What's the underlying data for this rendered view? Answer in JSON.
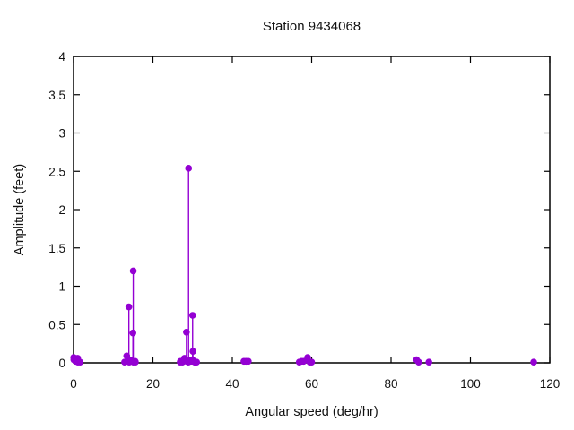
{
  "colors": {
    "marker": "#9400d3",
    "axis": "#000000",
    "background": "#ffffff",
    "text": "#111111"
  },
  "chart_data": {
    "type": "scatter",
    "style": "impulses+points",
    "title": "Station 9434068",
    "xlabel": "Angular speed (deg/hr)",
    "ylabel": "Amplitude (feet)",
    "xlim": [
      0,
      120
    ],
    "ylim": [
      0,
      4
    ],
    "x_ticks": [
      0,
      20,
      40,
      60,
      80,
      100,
      120
    ],
    "y_ticks": [
      0,
      0.5,
      1,
      1.5,
      2,
      2.5,
      3,
      3.5,
      4
    ],
    "grid": false,
    "legend": "none",
    "tick_style": "inward-mirrored",
    "series": [
      {
        "name": "harmonic-constituent-amplitudes",
        "color": "#9400d3",
        "points": [
          [
            0.04,
            0.07
          ],
          [
            0.08,
            0.04
          ],
          [
            0.54,
            0.02
          ],
          [
            1.02,
            0.06
          ],
          [
            1.1,
            0.01
          ],
          [
            1.64,
            0.01
          ],
          [
            12.85,
            0.01
          ],
          [
            13.4,
            0.09
          ],
          [
            13.47,
            0.02
          ],
          [
            13.94,
            0.73
          ],
          [
            14.02,
            0.01
          ],
          [
            14.49,
            0.03
          ],
          [
            14.92,
            0.02
          ],
          [
            14.96,
            0.39
          ],
          [
            15.04,
            1.2
          ],
          [
            15.08,
            0.01
          ],
          [
            15.51,
            0.02
          ],
          [
            15.59,
            0.01
          ],
          [
            26.87,
            0.01
          ],
          [
            26.95,
            0.02
          ],
          [
            27.42,
            0.01
          ],
          [
            27.9,
            0.05
          ],
          [
            27.97,
            0.06
          ],
          [
            28.44,
            0.4
          ],
          [
            28.51,
            0.02
          ],
          [
            28.9,
            0.01
          ],
          [
            28.98,
            2.54
          ],
          [
            29.46,
            0.03
          ],
          [
            29.53,
            0.02
          ],
          [
            29.96,
            0.04
          ],
          [
            30.0,
            0.62
          ],
          [
            30.04,
            0.02
          ],
          [
            30.08,
            0.15
          ],
          [
            30.54,
            0.01
          ],
          [
            30.63,
            0.01
          ],
          [
            31.02,
            0.01
          ],
          [
            42.93,
            0.02
          ],
          [
            43.48,
            0.02
          ],
          [
            44.03,
            0.02
          ],
          [
            56.87,
            0.01
          ],
          [
            57.42,
            0.02
          ],
          [
            57.97,
            0.02
          ],
          [
            58.98,
            0.07
          ],
          [
            59.53,
            0.01
          ],
          [
            60.0,
            0.01
          ],
          [
            86.41,
            0.04
          ],
          [
            86.95,
            0.01
          ],
          [
            89.53,
            0.01
          ],
          [
            115.94,
            0.01
          ]
        ]
      }
    ]
  }
}
